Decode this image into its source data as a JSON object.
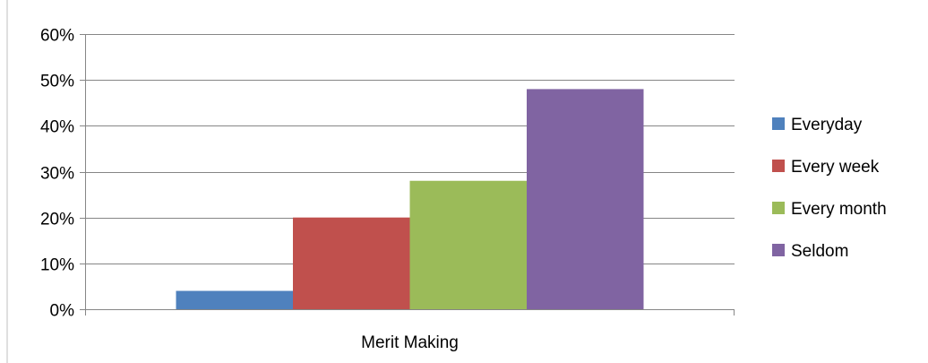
{
  "chart_data": {
    "type": "bar",
    "categories": [
      "Merit Making"
    ],
    "series": [
      {
        "name": "Everyday",
        "values": [
          4
        ],
        "color": "#4F81BD"
      },
      {
        "name": "Every week",
        "values": [
          20
        ],
        "color": "#C0504D"
      },
      {
        "name": "Every month",
        "values": [
          28
        ],
        "color": "#9BBB59"
      },
      {
        "name": "Seldom",
        "values": [
          48
        ],
        "color": "#8064A2"
      }
    ],
    "ylim": [
      0,
      60
    ],
    "yticks": [
      0,
      10,
      20,
      30,
      40,
      50,
      60
    ],
    "ytick_format": "percent",
    "ytick_labels": [
      "0%",
      "10%",
      "20%",
      "30%",
      "40%",
      "50%",
      "60%"
    ],
    "grid": true,
    "legend": "right",
    "colors": {
      "gridline": "#868686",
      "axis": "#868686",
      "frame": "#D9D9D9"
    }
  }
}
